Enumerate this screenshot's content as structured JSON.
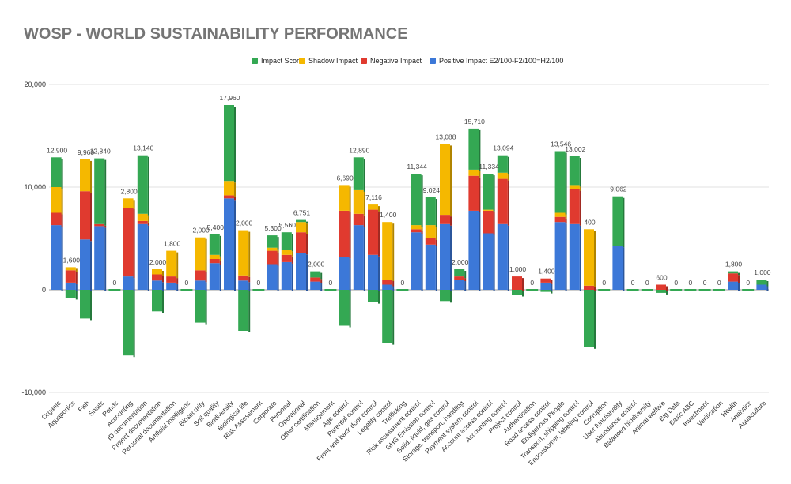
{
  "chart_data": {
    "type": "bar",
    "stacked": true,
    "title": "WOSP - WORLD SUSTAINABILITY PERFORMANCE",
    "ylim": [
      -10000,
      20000
    ],
    "yticks": [
      "-10,000",
      "0",
      "10,000",
      "20,000"
    ],
    "ytick_values": [
      -10000,
      0,
      10000,
      20000
    ],
    "grid": true,
    "legend_position": "top",
    "categories": [
      "Organic",
      "Aquaponics",
      "Fish",
      "Snails",
      "Ponds",
      "Accounting",
      "ID documentation",
      "Project documentation",
      "Personal documentation",
      "Artificial Intelligens",
      "Biosecurity",
      "Soil quality",
      "Biodiversity",
      "Biological life",
      "Risk Assessment",
      "Corporate",
      "Personal",
      "Operational",
      "Other certification",
      "Management",
      "Age control",
      "Parental control",
      "Front and back door control",
      "Legality control",
      "Trafficking",
      "Risk assessment control",
      "GHG Emission control",
      "Solid, liquid, gas control",
      "Storage, transport, handling",
      "Payment system control",
      "Account access control",
      "Accounting control",
      "Project control",
      "Authentication",
      "Road access control",
      "Endigenous People",
      "Transport, shipping control",
      "Endcustomer, labeling control",
      "Corruption",
      "User functionality",
      "Abundance control",
      "Balanced biodiversity",
      "Animal welfare",
      "Big Data",
      "Basic ABC",
      "Investment",
      "Verification",
      "Health",
      "Analytics",
      "Aquaculture"
    ],
    "series": [
      {
        "name": "Positive Impact E2/100-F2/100=H2/100",
        "color": "#3c78d8",
        "values": [
          6300,
          700,
          4900,
          6200,
          0,
          1300,
          6400,
          900,
          700,
          0,
          900,
          2600,
          8900,
          900,
          0,
          2500,
          2700,
          3600,
          800,
          0,
          3200,
          6300,
          3400,
          500,
          0,
          5600,
          4400,
          6400,
          1000,
          7700,
          5500,
          6400,
          0,
          0,
          700,
          6600,
          6400,
          0,
          0,
          4300,
          0,
          0,
          0,
          0,
          0,
          0,
          0,
          800,
          0,
          500
        ]
      },
      {
        "name": "Negative Impact",
        "color": "#e03a2f",
        "values": [
          1200,
          1200,
          4700,
          200,
          0,
          6700,
          300,
          600,
          600,
          0,
          1000,
          400,
          300,
          500,
          0,
          1300,
          700,
          2000,
          400,
          0,
          4500,
          1100,
          4400,
          500,
          0,
          300,
          600,
          900,
          300,
          3400,
          2200,
          4400,
          1300,
          0,
          400,
          500,
          3400,
          400,
          0,
          0,
          0,
          0,
          500,
          0,
          0,
          0,
          0,
          800,
          0,
          0
        ]
      },
      {
        "name": "Shadow Impact",
        "color": "#f5b800",
        "values": [
          2500,
          300,
          3100,
          0,
          0,
          900,
          700,
          500,
          2500,
          0,
          3200,
          400,
          1400,
          4400,
          0,
          300,
          500,
          1000,
          0,
          0,
          2500,
          2300,
          500,
          5600,
          0,
          400,
          1300,
          6900,
          0,
          600,
          100,
          600,
          0,
          0,
          0,
          400,
          400,
          5500,
          0,
          0,
          0,
          0,
          0,
          0,
          0,
          0,
          0,
          0,
          0,
          0
        ]
      },
      {
        "name": "Impact Score",
        "color": "#34a853",
        "values": [
          2900,
          -800,
          -2800,
          6400,
          0,
          -6400,
          5700,
          -2100,
          0,
          0,
          -3200,
          2000,
          7400,
          -4000,
          0,
          1200,
          1700,
          200,
          600,
          0,
          -3500,
          3200,
          -1200,
          -5200,
          0,
          5000,
          2700,
          -1100,
          700,
          4000,
          3500,
          1700,
          -500,
          0,
          -200,
          6000,
          2800,
          -5600,
          0,
          4800,
          0,
          0,
          -300,
          0,
          0,
          0,
          0,
          200,
          0,
          500
        ]
      }
    ],
    "data_labels": [
      "12,900",
      "1,600",
      "9,960",
      "12,840",
      "0",
      "2,800",
      "13,140",
      "2,000",
      "1,800",
      "0",
      "2,000",
      "5,400",
      "17,960",
      "2,000",
      "0",
      "5,300",
      "5,560",
      "6,751",
      "2,000",
      "0",
      "6,690",
      "12,890",
      "7,116",
      "1,400",
      "0",
      "11,344",
      "9,024",
      "13,088",
      "2,000",
      "15,710",
      "11,334",
      "13,094",
      "1,000",
      "0",
      "1,400",
      "13,546",
      "13,002",
      "400",
      "0",
      "9,062",
      "0",
      "0",
      "600",
      "0",
      "0",
      "0",
      "0",
      "1,800",
      "0",
      "1,000"
    ]
  }
}
